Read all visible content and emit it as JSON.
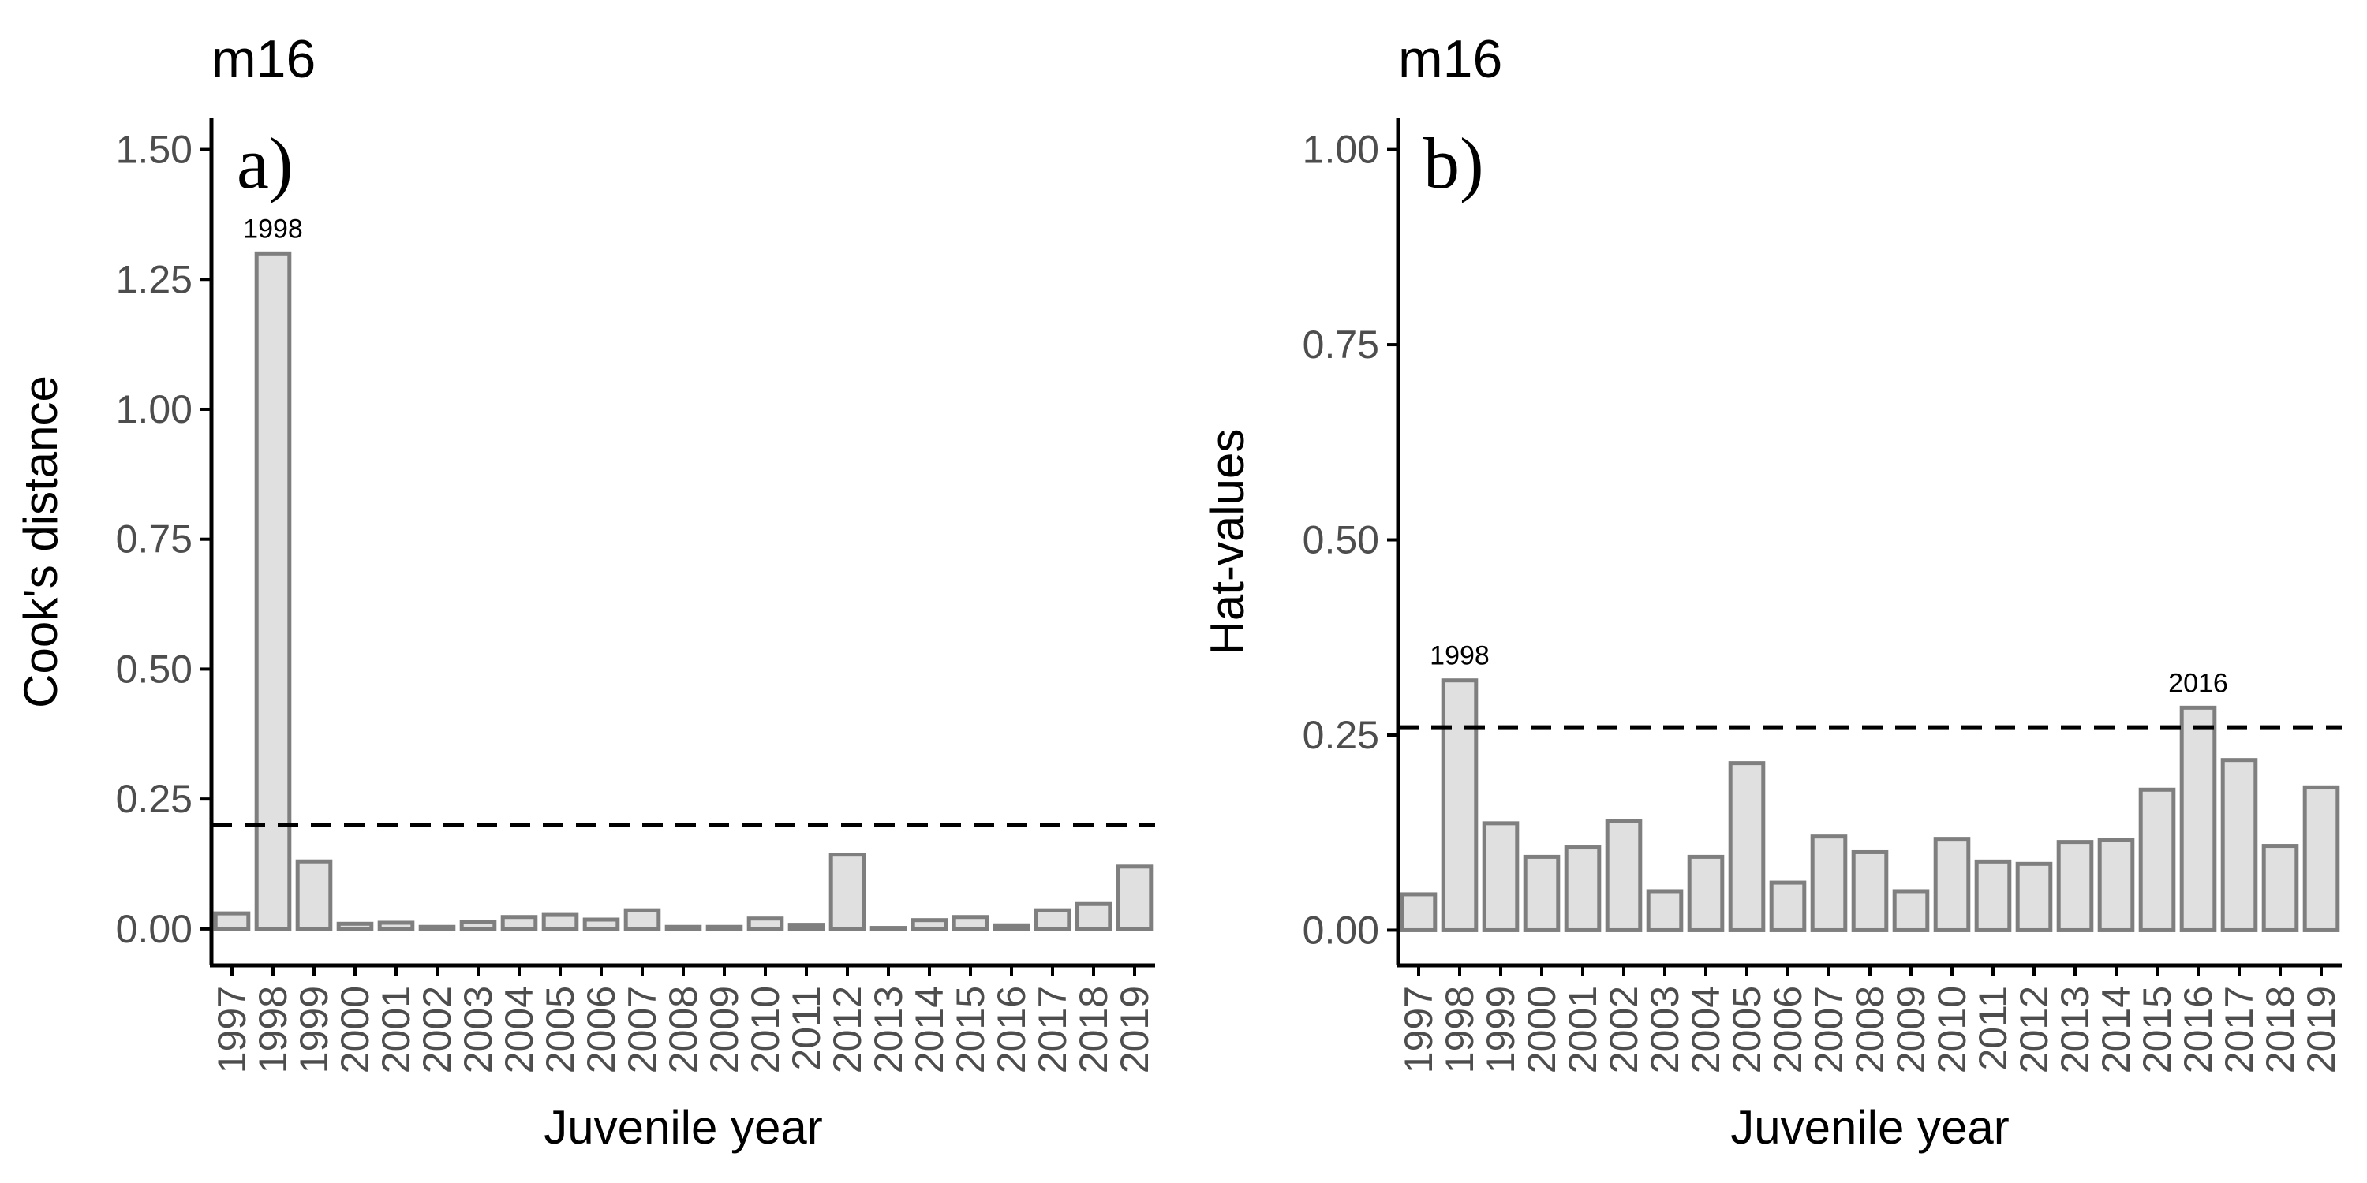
{
  "colors": {
    "bar_fill": "#e0e0e0",
    "bar_stroke": "#7f7f7f",
    "axis": "#000000",
    "tick_text": "#4d4d4d",
    "threshold": "#000000"
  },
  "chart_data": [
    {
      "type": "bar",
      "title": "m16",
      "panel_tag": "a)",
      "xlabel": "Juvenile year",
      "ylabel": "Cook's distance",
      "ylim": [
        -0.07,
        1.56
      ],
      "yticks": [
        0,
        0.25,
        0.5,
        0.75,
        1.0,
        1.25,
        1.5
      ],
      "ytick_labels": [
        "0.00",
        "0.25",
        "0.50",
        "0.75",
        "1.00",
        "1.25",
        "1.50"
      ],
      "grid": false,
      "categories": [
        "1997",
        "1998",
        "1999",
        "2000",
        "2001",
        "2002",
        "2003",
        "2004",
        "2005",
        "2006",
        "2007",
        "2008",
        "2009",
        "2010",
        "2011",
        "2012",
        "2013",
        "2014",
        "2015",
        "2016",
        "2017",
        "2018",
        "2019"
      ],
      "values": [
        0.03,
        1.3,
        0.13,
        0.01,
        0.012,
        0.004,
        0.013,
        0.023,
        0.027,
        0.018,
        0.036,
        0.004,
        0.004,
        0.02,
        0.008,
        0.143,
        0.002,
        0.017,
        0.023,
        0.007,
        0.036,
        0.048,
        0.12
      ],
      "threshold": 0.2,
      "threshold_style": "dashed",
      "annotations": [
        {
          "category": "1998",
          "text": "1998"
        }
      ]
    },
    {
      "type": "bar",
      "title": "m16",
      "panel_tag": "b)",
      "xlabel": "Juvenile year",
      "ylabel": "Hat-values",
      "ylim": [
        -0.045,
        1.04
      ],
      "yticks": [
        0,
        0.25,
        0.5,
        0.75,
        1.0
      ],
      "ytick_labels": [
        "0.00",
        "0.25",
        "0.50",
        "0.75",
        "1.00"
      ],
      "grid": false,
      "categories": [
        "1997",
        "1998",
        "1999",
        "2000",
        "2001",
        "2002",
        "2003",
        "2004",
        "2005",
        "2006",
        "2007",
        "2008",
        "2009",
        "2010",
        "2011",
        "2012",
        "2013",
        "2014",
        "2015",
        "2016",
        "2017",
        "2018",
        "2019"
      ],
      "values": [
        0.046,
        0.32,
        0.137,
        0.094,
        0.106,
        0.14,
        0.05,
        0.094,
        0.214,
        0.061,
        0.12,
        0.1,
        0.05,
        0.117,
        0.088,
        0.085,
        0.113,
        0.116,
        0.18,
        0.285,
        0.218,
        0.108,
        0.183
      ],
      "threshold": 0.26,
      "threshold_style": "dashed",
      "annotations": [
        {
          "category": "1998",
          "text": "1998"
        },
        {
          "category": "2016",
          "text": "2016"
        }
      ]
    }
  ]
}
